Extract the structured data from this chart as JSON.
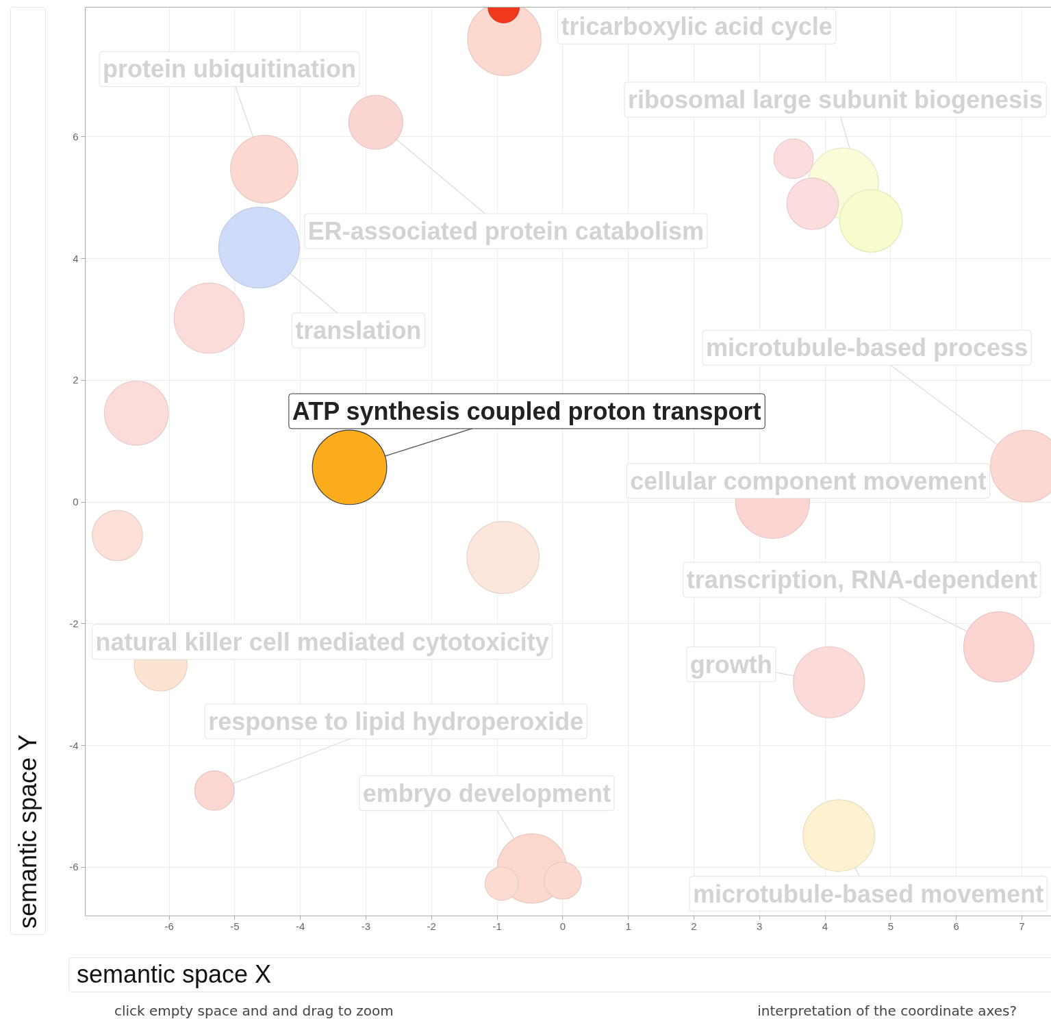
{
  "chart_data": {
    "type": "bubble",
    "xlabel": "semantic space X",
    "ylabel": "semantic space Y",
    "x": [
      -0.89,
      -0.9,
      -2.85,
      -4.55,
      -4.63,
      -5.39,
      -6.5,
      -3.25,
      -6.79,
      -0.91,
      -6.13,
      -5.31,
      -0.47,
      -0.93,
      0.0,
      4.21,
      4.06,
      6.65,
      3.2,
      7.07,
      4.28,
      3.52,
      3.81,
      4.7
    ],
    "values": [
      7.61,
      8.13,
      6.24,
      5.47,
      4.18,
      3.02,
      1.46,
      0.57,
      -0.55,
      -0.91,
      -2.67,
      -4.74,
      -6.02,
      -6.27,
      -6.22,
      -5.48,
      -2.96,
      -2.38,
      0.01,
      0.59,
      5.24,
      5.64,
      4.9,
      4.62
    ],
    "sizes": [
      0.83,
      0.15,
      0.45,
      0.7,
      1.0,
      0.76,
      0.63,
      0.85,
      0.39,
      0.8,
      0.43,
      0.24,
      0.74,
      0.17,
      0.21,
      0.79,
      0.78,
      0.76,
      0.84,
      0.79,
      0.76,
      0.24,
      0.41,
      0.6
    ],
    "colors": [
      "#fcd8cf",
      "#f0391c",
      "#fbd5d2",
      "#fcd8d0",
      "#cfdcf9",
      "#fcdcda",
      "#fcdcdb",
      "#fdac1b",
      "#fde0d7",
      "#fde6dc",
      "#fde3d1",
      "#fcd6d0",
      "#fcd8cc",
      "#fcdcd1",
      "#fcd9cf",
      "#fdf1cf",
      "#fcdad8",
      "#fcd5d3",
      "#fcd5d3",
      "#fcd8d2",
      "#f9fbd9",
      "#fcdcdc",
      "#fcdcdc",
      "#f8fbcb"
    ],
    "xlim": [
      -7.28,
      7.45
    ],
    "ylim": [
      -6.8,
      8.13
    ],
    "xticks": [
      -6,
      -5,
      -4,
      -3,
      -2,
      -1,
      0,
      1,
      2,
      3,
      4,
      5,
      6,
      7
    ],
    "yticks": [
      -6,
      -4,
      -2,
      0,
      2,
      4,
      6
    ],
    "grid": true,
    "annotations": [
      {
        "text": "tricarboxylic acid cycle",
        "x": -0.89,
        "y": 7.61
      },
      {
        "text": "protein ubiquitination",
        "x": -4.55,
        "y": 5.47
      },
      {
        "text": "ribosomal large subunit biogenesis",
        "x": 4.7,
        "y": 4.62
      },
      {
        "text": "ER-associated protein catabolism",
        "x": -2.85,
        "y": 6.24
      },
      {
        "text": "translation",
        "x": -4.63,
        "y": 4.18
      },
      {
        "text": "microtubule-based process",
        "x": 7.07,
        "y": 0.59
      },
      {
        "text": "ATP synthesis coupled proton transport",
        "x": -3.25,
        "y": 0.57
      },
      {
        "text": "cellular component movement",
        "x": 3.2,
        "y": 0.01
      },
      {
        "text": "transcription, RNA-dependent",
        "x": 6.65,
        "y": -2.38
      },
      {
        "text": "natural killer cell mediated cytotoxicity",
        "x": -6.13,
        "y": -2.67
      },
      {
        "text": "growth",
        "x": 4.06,
        "y": -2.96
      },
      {
        "text": "response to lipid hydroperoxide",
        "x": -5.31,
        "y": -4.74
      },
      {
        "text": "embryo development",
        "x": -0.47,
        "y": -6.02
      },
      {
        "text": "microtubule-based movement",
        "x": 4.21,
        "y": -5.48
      },
      "click empty space and and drag to zoom",
      "interpretation of the coordinate axes?"
    ]
  }
}
